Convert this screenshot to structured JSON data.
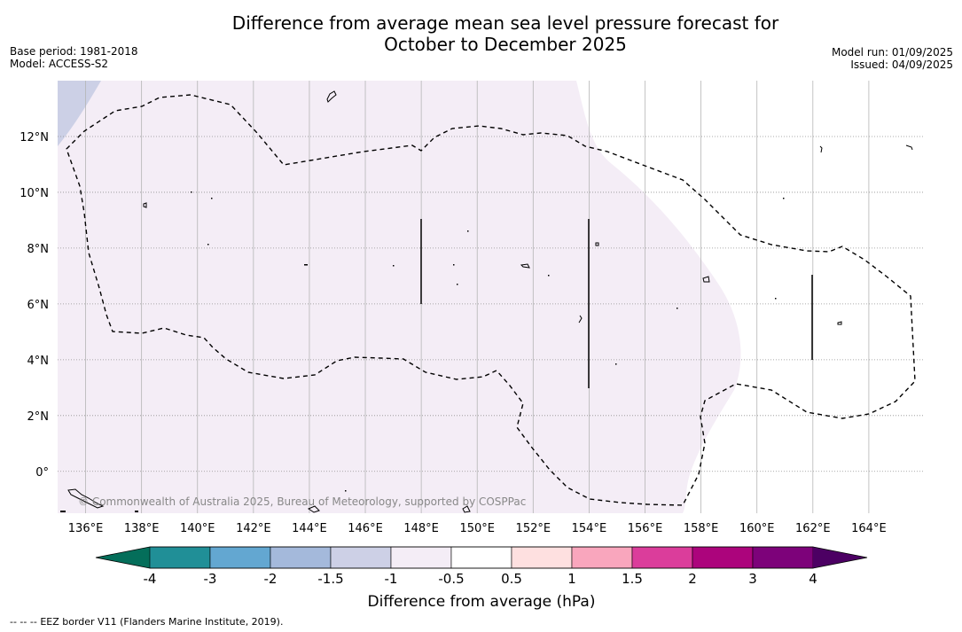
{
  "title": {
    "line1": "Difference from average mean sea level pressure forecast for",
    "line2": "October to December 2025"
  },
  "meta": {
    "base_period": "Base period: 1981-2018",
    "model": "Model: ACCESS-S2",
    "model_run": "Model run: 01/09/2025",
    "issued": "Issued: 04/09/2025"
  },
  "map": {
    "lon_range": [
      135,
      166
    ],
    "lat_range": [
      -1.5,
      14
    ],
    "lon_ticks": [
      136,
      138,
      140,
      142,
      144,
      146,
      148,
      150,
      152,
      154,
      156,
      158,
      160,
      162,
      164
    ],
    "lon_tick_labels": [
      "136°E",
      "138°E",
      "140°E",
      "142°E",
      "144°E",
      "146°E",
      "148°E",
      "150°E",
      "152°E",
      "154°E",
      "156°E",
      "158°E",
      "160°E",
      "162°E",
      "164°E"
    ],
    "lat_ticks": [
      12,
      10,
      8,
      6,
      4,
      2,
      0
    ],
    "lat_tick_labels": [
      "12°N",
      "10°N",
      "8°N",
      "6°N",
      "4°N",
      "2°N",
      "0°"
    ],
    "copyright": "© Commonwealth of Australia 2025, Bureau of Meteorology, supported by COSPPac",
    "fill_light": "#f4edf6",
    "fill_medium": "#ccd0e6"
  },
  "colorbar": {
    "tick_labels": [
      "-4",
      "-3",
      "-2",
      "-1.5",
      "-1",
      "-0.5",
      "0.5",
      "1",
      "1.5",
      "2",
      "3",
      "4"
    ],
    "colors": [
      "#208f97",
      "#63a7d1",
      "#a4b9db",
      "#cdd0e6",
      "#f4edf6",
      "#ffffff",
      "#fee0e0",
      "#f9a6bd",
      "#db3d9b",
      "#ac047c",
      "#7d027a"
    ],
    "low_color": "#046e5a",
    "high_color": "#4c0063",
    "label": "Difference from average (hPa)"
  },
  "footer": {
    "legend_symbol": "-- -- --",
    "legend_text": "EEZ border V11 (Flanders Marine Institute, 2019)."
  }
}
